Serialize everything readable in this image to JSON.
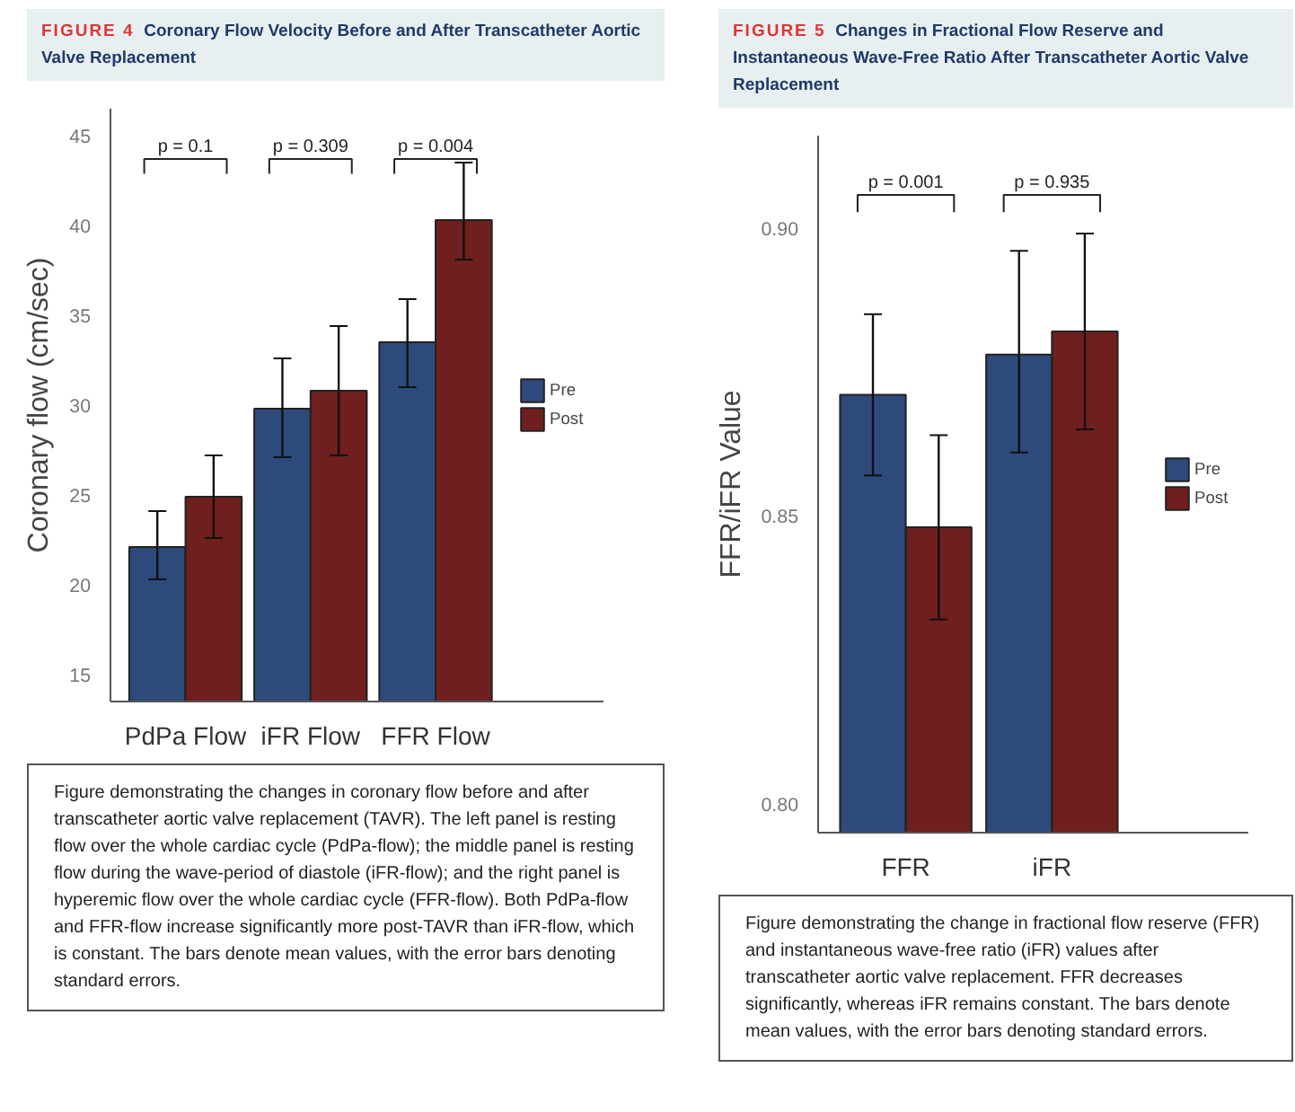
{
  "chart_data": [
    {
      "type": "bar",
      "title": "FIGURE 4",
      "subtitle": "Coronary Flow Velocity Before and After Transcatheter Aortic Valve Replacement",
      "ylabel": "Coronary flow (cm/sec)",
      "categories": [
        "PdPa Flow",
        "iFR Flow",
        "FFR Flow"
      ],
      "series": [
        {
          "name": "Pre",
          "color": "#2e4a7a",
          "values": [
            22.1,
            29.8,
            33.5
          ],
          "errors": [
            [
              20.3,
              24.1
            ],
            [
              27.1,
              32.6
            ],
            [
              31.0,
              35.9
            ]
          ]
        },
        {
          "name": "Post",
          "color": "#6e1f1e",
          "values": [
            24.9,
            30.8,
            40.3
          ],
          "errors": [
            [
              22.6,
              27.2
            ],
            [
              27.2,
              34.4
            ],
            [
              38.1,
              43.5
            ]
          ]
        }
      ],
      "ylim": [
        13.5,
        46.5
      ],
      "yticks": [
        15,
        20,
        25,
        30,
        35,
        40,
        45
      ],
      "grid": false,
      "legend": "right",
      "annotations": [
        "p = 0.1",
        "p = 0.309",
        "p = 0.004",
        "Figure demonstrating the changes in coronary flow before and after transcatheter aortic valve replacement (TAVR). The left panel is resting flow over the whole cardiac cycle (PdPa-flow); the middle panel is resting flow during the wave-period of diastole (iFR-flow); and the right panel is hyperemic flow over the whole cardiac cycle (FFR-flow). Both PdPa-flow and FFR-flow increase significantly more post-TAVR than iFR-flow, which is constant. The bars denote mean values, with the error bars denoting standard errors."
      ]
    },
    {
      "type": "bar",
      "title": "FIGURE 5",
      "subtitle": "Changes in Fractional Flow Reserve and Instantaneous Wave-Free Ratio After Transcatheter Aortic Valve Replacement",
      "ylabel": "FFR/iFR Value",
      "categories": [
        "FFR",
        "iFR"
      ],
      "series": [
        {
          "name": "Pre",
          "color": "#2e4a7a",
          "values": [
            0.871,
            0.878
          ],
          "errors": [
            [
              0.857,
              0.885
            ],
            [
              0.861,
              0.896
            ]
          ]
        },
        {
          "name": "Post",
          "color": "#6e1f1e",
          "values": [
            0.848,
            0.882
          ],
          "errors": [
            [
              0.832,
              0.864
            ],
            [
              0.865,
              0.899
            ]
          ]
        }
      ],
      "ylim": [
        0.795,
        0.916
      ],
      "yticks": [
        {
          "value": 0.8,
          "label": "0.80"
        },
        {
          "value": 0.85,
          "label": "0.85"
        },
        {
          "value": 0.9,
          "label": "0.90"
        }
      ],
      "grid": false,
      "legend": "right",
      "annotations": [
        "p = 0.001",
        "p = 0.935",
        "Figure demonstrating the change in fractional flow reserve (FFR) and instantaneous wave-free ratio (iFR) values after transcatheter aortic valve replacement. FFR decreases significantly, whereas iFR remains constant. The bars denote mean values, with the error bars denoting standard errors."
      ]
    }
  ]
}
